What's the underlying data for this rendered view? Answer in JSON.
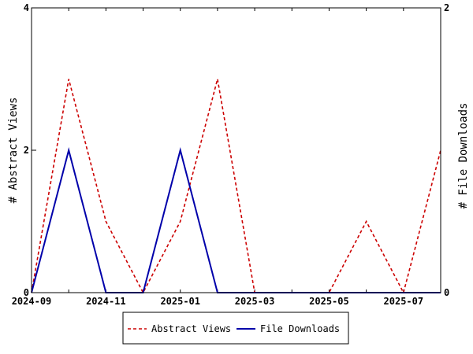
{
  "chart_data": {
    "type": "line",
    "x": [
      "2024-09",
      "2024-10",
      "2024-11",
      "2024-12",
      "2025-01",
      "2025-02",
      "2025-03",
      "2025-04",
      "2025-05",
      "2025-06",
      "2025-07",
      "2025-08"
    ],
    "x_tick_labels": [
      "2024-09",
      "2024-11",
      "2025-01",
      "2025-03",
      "2025-05",
      "2025-07"
    ],
    "left_axis": {
      "label": "# Abstract Views",
      "ylim": [
        0,
        4
      ],
      "ticks": [
        "0",
        "2",
        "4"
      ]
    },
    "right_axis": {
      "label": "# File Downloads",
      "ylim": [
        0,
        2
      ],
      "ticks": [
        "0",
        "2"
      ]
    },
    "series": [
      {
        "name": "Abstract Views",
        "axis": "left",
        "style": "dashed",
        "color": "#cc0000",
        "values": [
          0,
          3,
          1,
          0,
          1,
          3,
          0,
          0,
          0,
          1,
          0,
          2
        ]
      },
      {
        "name": "File Downloads",
        "axis": "right",
        "style": "solid",
        "color": "#0000aa",
        "values": [
          0,
          1,
          0,
          0,
          1,
          0,
          0,
          0,
          0,
          0,
          0,
          0
        ]
      }
    ],
    "grid": false,
    "legend_position": "bottom"
  }
}
